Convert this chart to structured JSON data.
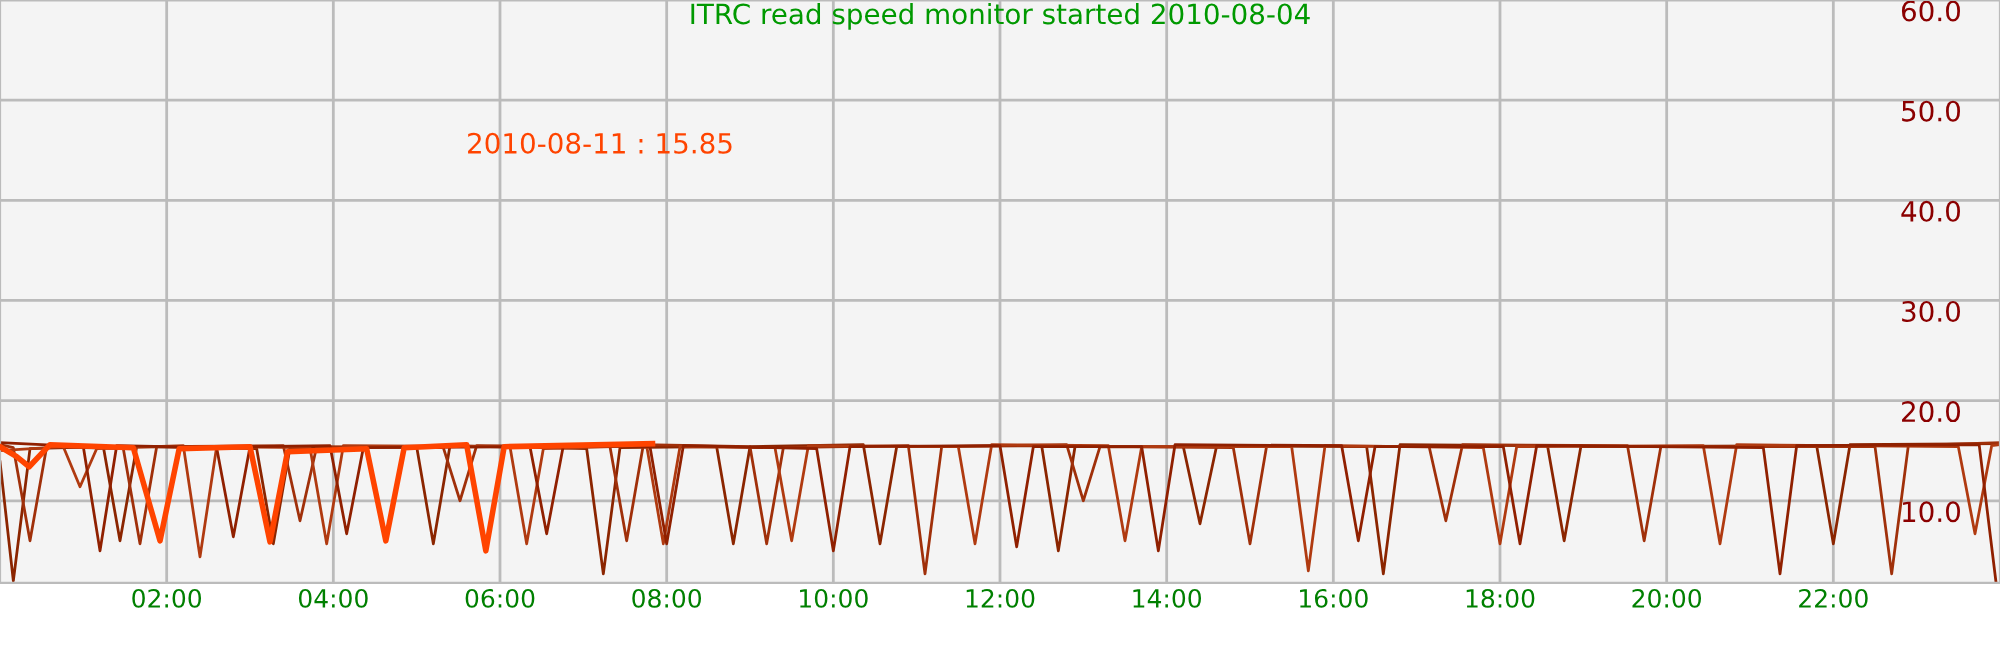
{
  "chart_data": {
    "type": "line",
    "title": "ITRC read speed monitor started 2010-08-04",
    "annotations": [
      "2010-08-11 : 15.85"
    ],
    "xlim": [
      0,
      24
    ],
    "xticks": [
      {
        "value": 2,
        "label": "02:00"
      },
      {
        "value": 4,
        "label": "04:00"
      },
      {
        "value": 6,
        "label": "06:00"
      },
      {
        "value": 8,
        "label": "08:00"
      },
      {
        "value": 10,
        "label": "10:00"
      },
      {
        "value": 12,
        "label": "12:00"
      },
      {
        "value": 14,
        "label": "14:00"
      },
      {
        "value": 16,
        "label": "16:00"
      },
      {
        "value": 18,
        "label": "18:00"
      },
      {
        "value": 20,
        "label": "20:00"
      },
      {
        "value": 22,
        "label": "22:00"
      }
    ],
    "ylim": [
      1.8,
      60
    ],
    "yticks": [
      {
        "value": 10,
        "label": "10.0"
      },
      {
        "value": 20,
        "label": "20.0"
      },
      {
        "value": 30,
        "label": "30.0"
      },
      {
        "value": 40,
        "label": "40.0"
      },
      {
        "value": 50,
        "label": "50.0"
      },
      {
        "value": 60,
        "label": "60.0"
      }
    ],
    "grid": true,
    "marker": "none",
    "line_style": "solid",
    "series": [
      {
        "color": "#8b2500",
        "x": [
          0,
          0.16,
          0.36,
          1.24,
          1.44,
          1.64,
          3.08,
          3.28,
          3.48,
          5.0,
          5.2,
          5.4,
          7.04,
          7.24,
          7.44,
          8.6,
          8.8,
          9.0,
          10.36,
          10.56,
          10.76,
          12.5,
          12.7,
          12.9,
          14.2,
          14.4,
          14.6,
          16.4,
          16.6,
          16.8,
          18.57,
          18.77,
          18.97,
          21.8,
          22.0,
          22.2,
          24
        ],
        "values": [
          13.9,
          2.0,
          15.2,
          15.4,
          6.0,
          15.4,
          15.2,
          5.7,
          15.3,
          15.4,
          5.7,
          15.5,
          15.2,
          2.7,
          15.3,
          15.4,
          5.7,
          15.4,
          15.6,
          5.7,
          15.4,
          15.5,
          5.0,
          15.4,
          15.4,
          7.7,
          15.5,
          15.4,
          2.7,
          15.6,
          15.5,
          6.0,
          15.4,
          15.5,
          5.7,
          15.6,
          15.7
        ]
      },
      {
        "color": "#a0300a",
        "x": [
          0,
          0.16,
          0.36,
          0.56,
          1.48,
          1.68,
          1.88,
          3.4,
          3.6,
          3.8,
          5.32,
          5.52,
          5.72,
          7.32,
          7.52,
          7.72,
          9.0,
          9.2,
          9.4,
          10.9,
          11.1,
          11.3,
          12.8,
          13.0,
          13.2,
          14.8,
          15.0,
          15.2,
          17.15,
          17.35,
          17.55,
          19.53,
          19.73,
          19.93,
          22.5,
          22.7,
          22.9,
          24
        ],
        "values": [
          15.6,
          15.3,
          6.0,
          15.4,
          15.2,
          5.7,
          15.4,
          15.5,
          8.0,
          15.4,
          15.3,
          10.0,
          15.5,
          15.4,
          6.0,
          15.6,
          15.4,
          5.7,
          15.3,
          15.5,
          2.7,
          15.4,
          15.6,
          10.0,
          15.4,
          15.3,
          5.7,
          15.5,
          15.4,
          8.0,
          15.6,
          15.5,
          6.0,
          15.4,
          15.4,
          2.7,
          15.5,
          15.8
        ]
      },
      {
        "color": "#b03a10",
        "x": [
          0,
          0.76,
          0.96,
          1.16,
          2.2,
          2.4,
          2.6,
          3.72,
          3.92,
          4.12,
          6.12,
          6.32,
          6.52,
          7.76,
          7.96,
          8.16,
          9.3,
          9.5,
          9.7,
          11.5,
          11.7,
          11.9,
          13.3,
          13.5,
          13.7,
          15.5,
          15.7,
          15.9,
          17.8,
          18.0,
          18.2,
          20.44,
          20.64,
          20.84,
          23.5,
          23.7,
          23.9,
          24
        ],
        "values": [
          15.0,
          15.4,
          11.4,
          15.2,
          15.5,
          4.4,
          15.4,
          15.3,
          5.7,
          15.5,
          15.4,
          5.7,
          15.2,
          15.5,
          5.7,
          15.4,
          15.3,
          6.0,
          15.5,
          15.4,
          5.7,
          15.6,
          15.5,
          6.0,
          15.4,
          15.4,
          3.0,
          15.5,
          15.3,
          5.7,
          15.4,
          15.5,
          5.7,
          15.6,
          15.4,
          6.7,
          15.5,
          15.6
        ]
      },
      {
        "color": "#902000",
        "x": [
          0,
          1.0,
          1.2,
          1.4,
          2.6,
          2.8,
          3.0,
          3.96,
          4.16,
          4.36,
          6.36,
          6.56,
          6.76,
          7.8,
          8.0,
          8.2,
          9.8,
          10.0,
          10.2,
          12.0,
          12.2,
          12.4,
          13.7,
          13.9,
          14.1,
          16.1,
          16.3,
          16.5,
          18.04,
          18.24,
          18.44,
          21.16,
          21.36,
          21.56,
          23.75,
          23.95
        ],
        "values": [
          15.8,
          15.4,
          5.0,
          15.5,
          15.3,
          6.4,
          15.4,
          15.5,
          6.7,
          15.3,
          15.4,
          6.7,
          15.5,
          15.4,
          5.7,
          15.5,
          15.2,
          5.0,
          15.4,
          15.5,
          5.4,
          15.4,
          15.4,
          5.0,
          15.6,
          15.5,
          6.0,
          15.4,
          15.4,
          5.7,
          15.5,
          15.3,
          2.7,
          15.5,
          15.6,
          2.0
        ]
      },
      {
        "color": "#ff4400",
        "x": [
          0,
          0.2,
          0.35,
          0.6,
          1.6,
          1.92,
          2.15,
          3.0,
          3.24,
          3.45,
          4.4,
          4.63,
          4.85,
          5.6,
          5.83,
          6.05,
          7.83
        ],
        "values": [
          15.4,
          14.4,
          13.4,
          15.6,
          15.3,
          6.0,
          15.2,
          15.4,
          5.9,
          14.9,
          15.2,
          6.0,
          15.3,
          15.6,
          5.0,
          15.4,
          15.7
        ]
      }
    ]
  }
}
